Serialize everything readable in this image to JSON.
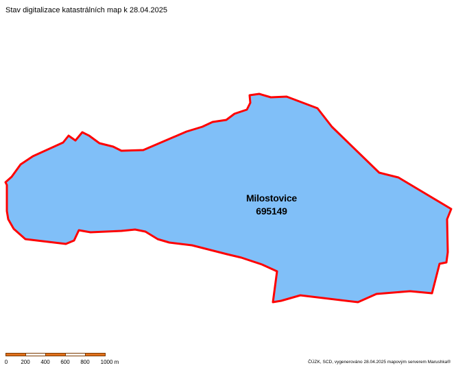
{
  "map": {
    "title": "Stav digitalizace katastrálních map k 28.04.2025",
    "area": {
      "name": "Milostovice",
      "code": "695149",
      "fill_color": "#80bff8",
      "border_color": "#ff0000"
    },
    "scale": {
      "ticks": [
        "0",
        "200",
        "400",
        "600",
        "800",
        "1000 m"
      ],
      "colors": [
        "#e0701c",
        "#ffffff"
      ]
    },
    "credit": "ČÚZK, SCD, vygenerováno 28.04.2025 mapovým serverem Marushka®"
  }
}
